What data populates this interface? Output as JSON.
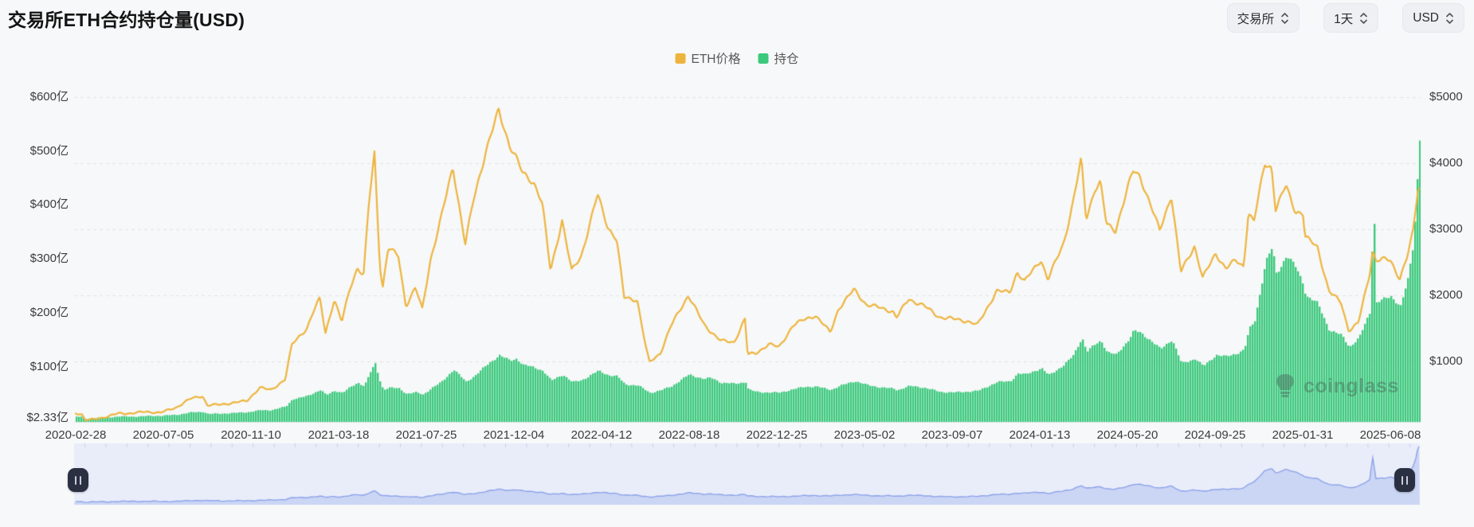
{
  "header": {
    "title": "交易所ETH合约持仓量(USD)"
  },
  "controls": {
    "exchange_select": "交易所",
    "interval_select": "1天",
    "currency_select": "USD"
  },
  "legend": [
    {
      "label": "ETH价格",
      "color": "#edb43d"
    },
    {
      "label": "持仓",
      "color": "#3cc97d"
    }
  ],
  "watermark": {
    "text": "coinglass"
  },
  "chart_data": {
    "type": "mixed",
    "title": "交易所ETH合约持仓量(USD)",
    "legend_position": "top-center",
    "grid": "dashed-horizontal",
    "x": [
      "2020-02-28",
      "2020-03-08",
      "2020-03-13",
      "2020-03-28",
      "2020-04-15",
      "2020-05-01",
      "2020-05-20",
      "2020-06-10",
      "2020-07-01",
      "2020-07-25",
      "2020-08-15",
      "2020-09-01",
      "2020-09-08",
      "2020-09-25",
      "2020-10-15",
      "2020-11-05",
      "2020-11-24",
      "2020-12-10",
      "2020-12-31",
      "2021-01-10",
      "2021-01-20",
      "2021-02-01",
      "2021-02-10",
      "2021-02-20",
      "2021-02-28",
      "2021-03-13",
      "2021-03-24",
      "2021-04-05",
      "2021-04-16",
      "2021-04-25",
      "2021-05-03",
      "2021-05-11",
      "2021-05-19",
      "2021-05-23",
      "2021-05-31",
      "2021-06-15",
      "2021-06-26",
      "2021-07-10",
      "2021-07-20",
      "2021-08-01",
      "2021-08-16",
      "2021-09-03",
      "2021-09-21",
      "2021-10-03",
      "2021-10-21",
      "2021-11-09",
      "2021-11-25",
      "2021-12-04",
      "2021-12-14",
      "2021-12-31",
      "2022-01-12",
      "2022-01-24",
      "2022-02-10",
      "2022-02-24",
      "2022-03-10",
      "2022-04-03",
      "2022-04-18",
      "2022-05-01",
      "2022-05-12",
      "2022-05-31",
      "2022-06-13",
      "2022-06-18",
      "2022-07-04",
      "2022-07-20",
      "2022-08-14",
      "2022-09-06",
      "2022-09-15",
      "2022-10-01",
      "2022-10-20",
      "2022-11-05",
      "2022-11-09",
      "2022-11-21",
      "2022-12-10",
      "2022-12-25",
      "2023-01-14",
      "2023-02-01",
      "2023-02-16",
      "2023-03-10",
      "2023-03-22",
      "2023-04-14",
      "2023-05-02",
      "2023-05-25",
      "2023-06-10",
      "2023-06-15",
      "2023-07-03",
      "2023-07-25",
      "2023-08-17",
      "2023-09-07",
      "2023-09-27",
      "2023-10-12",
      "2023-11-09",
      "2023-11-28",
      "2023-12-09",
      "2023-12-20",
      "2024-01-02",
      "2024-01-13",
      "2024-01-23",
      "2024-02-15",
      "2024-02-28",
      "2024-03-12",
      "2024-03-19",
      "2024-04-01",
      "2024-04-09",
      "2024-04-18",
      "2024-05-01",
      "2024-05-20",
      "2024-05-27",
      "2024-06-06",
      "2024-06-18",
      "2024-07-05",
      "2024-07-22",
      "2024-08-05",
      "2024-08-25",
      "2024-09-06",
      "2024-09-25",
      "2024-10-10",
      "2024-10-24",
      "2024-11-05",
      "2024-11-12",
      "2024-11-20",
      "2024-12-06",
      "2024-12-16",
      "2024-12-22",
      "2025-01-06",
      "2025-01-20",
      "2025-01-31",
      "2025-02-03",
      "2025-02-21",
      "2025-03-10",
      "2025-03-28",
      "2025-04-08",
      "2025-04-22",
      "2025-05-09",
      "2025-05-13",
      "2025-05-18",
      "2025-05-31",
      "2025-06-08",
      "2025-06-22",
      "2025-07-03",
      "2025-07-11",
      "2025-07-16",
      "2025-07-19",
      "2025-07-21"
    ],
    "series": [
      {
        "name": "ETH价格",
        "type": "line",
        "y_axis": "right",
        "color": "#edb43d",
        "values": [
          225,
          200,
          110,
          135,
          160,
          212,
          210,
          245,
          228,
          305,
          432,
          475,
          335,
          350,
          378,
          400,
          600,
          560,
          735,
          1260,
          1380,
          1510,
          1740,
          1950,
          1420,
          1925,
          1590,
          2110,
          2430,
          2310,
          3430,
          4170,
          2450,
          2120,
          2710,
          2580,
          1830,
          2110,
          1790,
          2550,
          3160,
          3950,
          2760,
          3420,
          4170,
          4810,
          4300,
          4110,
          3850,
          3690,
          3370,
          2360,
          3140,
          2380,
          2610,
          3520,
          3020,
          2830,
          1960,
          1940,
          1210,
          995,
          1130,
          1540,
          1990,
          1560,
          1472,
          1320,
          1290,
          1640,
          1095,
          1115,
          1260,
          1220,
          1550,
          1640,
          1690,
          1430,
          1790,
          2100,
          1870,
          1800,
          1745,
          1650,
          1940,
          1855,
          1680,
          1635,
          1600,
          1545,
          2080,
          2050,
          2355,
          2200,
          2380,
          2530,
          2230,
          2800,
          3380,
          4070,
          3160,
          3600,
          3690,
          3060,
          2970,
          3660,
          3900,
          3830,
          3480,
          2980,
          3500,
          2340,
          2750,
          2270,
          2650,
          2410,
          2520,
          2430,
          3240,
          3090,
          4000,
          3950,
          3300,
          3680,
          3280,
          3230,
          2870,
          2730,
          2050,
          1900,
          1475,
          1585,
          2345,
          2680,
          2520,
          2530,
          2515,
          2250,
          2590,
          2950,
          3400,
          3680,
          3620
        ]
      },
      {
        "name": "持仓",
        "type": "area",
        "y_axis": "left",
        "color": "#3cc97d",
        "unit": "亿USD",
        "values": [
          8,
          7,
          4,
          5,
          6,
          8,
          8,
          9,
          9,
          11,
          16,
          17,
          13,
          13,
          14,
          16,
          20,
          20,
          26,
          40,
          42,
          46,
          52,
          58,
          48,
          56,
          52,
          62,
          70,
          64,
          88,
          106,
          70,
          58,
          62,
          60,
          50,
          52,
          48,
          60,
          72,
          96,
          72,
          82,
          102,
          122,
          112,
          116,
          104,
          98,
          92,
          74,
          86,
          72,
          76,
          92,
          84,
          82,
          68,
          66,
          56,
          52,
          56,
          64,
          86,
          78,
          80,
          70,
          68,
          72,
          58,
          54,
          53,
          52,
          58,
          63,
          64,
          58,
          64,
          73,
          66,
          62,
          60,
          57,
          64,
          61,
          54,
          53,
          54,
          55,
          72,
          74,
          88,
          86,
          92,
          96,
          84,
          104,
          122,
          155,
          128,
          142,
          148,
          126,
          122,
          152,
          168,
          164,
          152,
          132,
          150,
          106,
          116,
          102,
          122,
          118,
          124,
          132,
          170,
          185,
          295,
          322,
          272,
          305,
          282,
          252,
          232,
          218,
          168,
          158,
          136,
          152,
          205,
          430,
          220,
          228,
          232,
          212,
          262,
          330,
          425,
          530,
          515
        ]
      }
    ],
    "left_axis": {
      "tick_labels": [
        "$600亿",
        "$500亿",
        "$400亿",
        "$300亿",
        "$200亿",
        "$100亿",
        "$2.33亿"
      ],
      "tick_values": [
        600,
        500,
        400,
        300,
        200,
        100,
        2.33
      ],
      "range": [
        2.33,
        600
      ]
    },
    "right_axis": {
      "tick_labels": [
        "$5000",
        "$4000",
        "$3000",
        "$2000",
        "$1000"
      ],
      "tick_values": [
        5000,
        4000,
        3000,
        2000,
        1000
      ],
      "range": [
        120,
        5000
      ]
    },
    "x_axis": {
      "tick_labels": [
        "2020-02-28",
        "2020-07-05",
        "2020-11-10",
        "2021-03-18",
        "2021-07-25",
        "2021-12-04",
        "2022-04-12",
        "2022-08-18",
        "2022-12-25",
        "2023-05-02",
        "2023-09-07",
        "2024-01-13",
        "2024-05-20",
        "2024-09-25",
        "2025-01-31",
        "2025-06-08"
      ]
    }
  },
  "navigator": {
    "series": "持仓",
    "left_handle": "pause",
    "right_handle": "pause"
  }
}
